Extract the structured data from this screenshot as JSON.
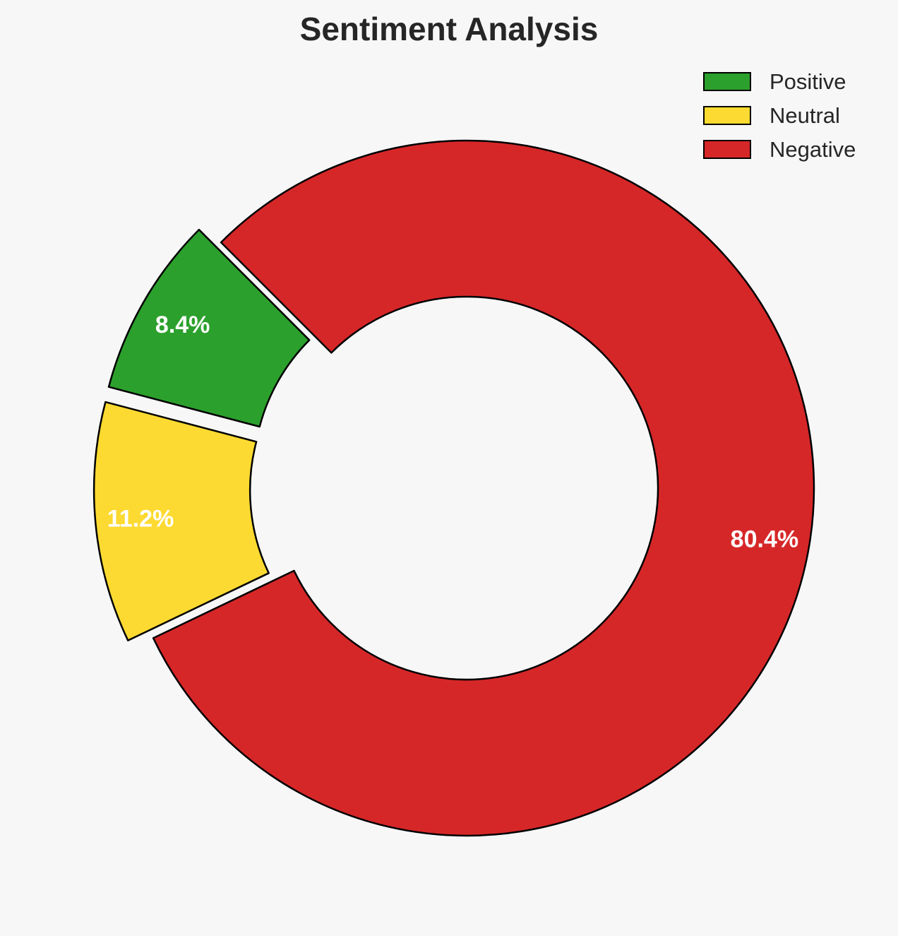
{
  "chart_data": {
    "type": "pie",
    "style": "donut",
    "title": "Sentiment Analysis",
    "categories": [
      "Positive",
      "Neutral",
      "Negative"
    ],
    "values": [
      8.4,
      11.2,
      80.4
    ],
    "labels": [
      "8.4%",
      "11.2%",
      "80.4%"
    ],
    "colors": [
      "#2ca02c",
      "#fdda31",
      "#d62728"
    ],
    "exploded": [
      true,
      true,
      false
    ],
    "edge_color": "#000000",
    "legend_position": "top-right",
    "start_angle_deg": 135,
    "direction": "counterclockwise"
  }
}
